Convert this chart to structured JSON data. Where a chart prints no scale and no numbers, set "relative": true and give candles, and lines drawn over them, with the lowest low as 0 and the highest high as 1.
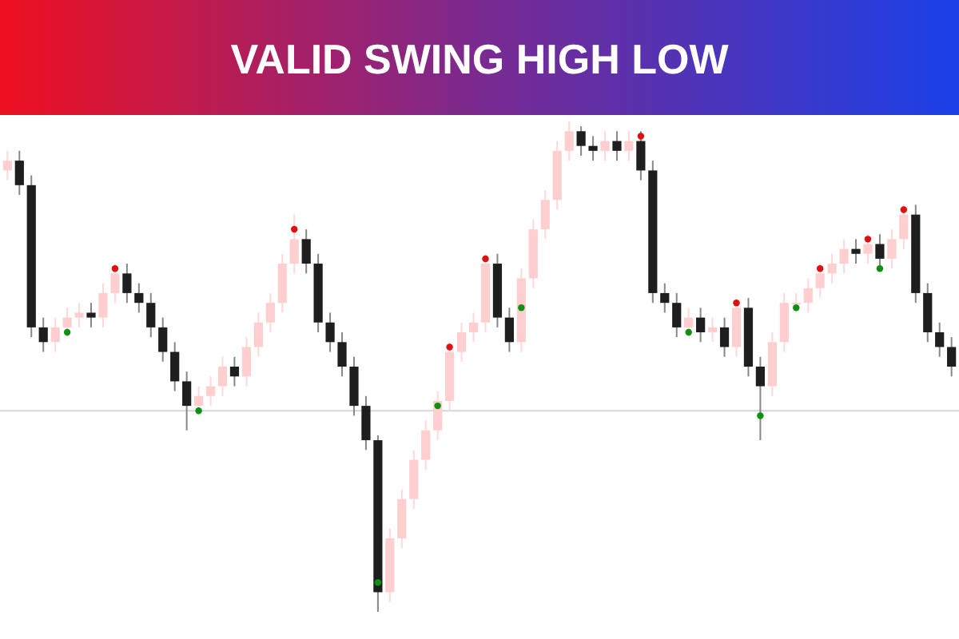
{
  "chart_data": {
    "type": "candlestick",
    "title": "VALID SWING HIGH LOW",
    "relative": true,
    "marker": "circle",
    "categories": [
      null,
      null,
      null,
      null,
      null,
      null,
      null,
      null,
      null,
      null,
      null,
      null,
      null,
      null,
      null,
      null,
      null,
      null,
      null,
      null,
      null,
      null,
      null,
      null,
      null,
      null,
      null,
      null,
      null,
      null,
      null,
      null,
      null,
      null,
      null,
      null,
      null,
      null,
      null,
      null,
      null,
      null,
      null,
      null,
      null,
      null,
      null,
      null,
      null,
      null,
      null,
      null,
      null,
      null,
      null,
      null,
      null,
      null,
      null,
      null,
      null,
      null,
      null,
      null,
      null,
      null,
      null,
      null,
      null,
      null,
      null,
      null,
      null,
      null,
      null,
      null,
      null,
      null,
      null,
      null
    ],
    "ohlc": [
      [
        0.9,
        0.94,
        0.88,
        0.92
      ],
      [
        0.92,
        0.94,
        0.85,
        0.87
      ],
      [
        0.87,
        0.89,
        0.56,
        0.58
      ],
      [
        0.58,
        0.6,
        0.53,
        0.55
      ],
      [
        0.55,
        0.6,
        0.53,
        0.58
      ],
      [
        0.58,
        0.62,
        0.56,
        0.6
      ],
      [
        0.6,
        0.63,
        0.58,
        0.61
      ],
      [
        0.61,
        0.63,
        0.58,
        0.6
      ],
      [
        0.6,
        0.67,
        0.58,
        0.65
      ],
      [
        0.65,
        0.71,
        0.63,
        0.69
      ],
      [
        0.69,
        0.71,
        0.63,
        0.65
      ],
      [
        0.65,
        0.67,
        0.61,
        0.63
      ],
      [
        0.63,
        0.65,
        0.56,
        0.58
      ],
      [
        0.58,
        0.6,
        0.51,
        0.53
      ],
      [
        0.53,
        0.55,
        0.45,
        0.47
      ],
      [
        0.47,
        0.49,
        0.37,
        0.42
      ],
      [
        0.42,
        0.46,
        0.4,
        0.44
      ],
      [
        0.44,
        0.48,
        0.42,
        0.46
      ],
      [
        0.46,
        0.52,
        0.44,
        0.5
      ],
      [
        0.5,
        0.52,
        0.46,
        0.48
      ],
      [
        0.48,
        0.56,
        0.46,
        0.54
      ],
      [
        0.54,
        0.61,
        0.52,
        0.59
      ],
      [
        0.59,
        0.65,
        0.57,
        0.63
      ],
      [
        0.63,
        0.73,
        0.61,
        0.71
      ],
      [
        0.71,
        0.81,
        0.69,
        0.76
      ],
      [
        0.76,
        0.78,
        0.69,
        0.71
      ],
      [
        0.71,
        0.73,
        0.57,
        0.59
      ],
      [
        0.59,
        0.61,
        0.53,
        0.55
      ],
      [
        0.55,
        0.57,
        0.48,
        0.5
      ],
      [
        0.5,
        0.52,
        0.4,
        0.42
      ],
      [
        0.42,
        0.44,
        0.33,
        0.35
      ],
      [
        0.35,
        0.36,
        0,
        0.04
      ],
      [
        0.04,
        0.17,
        0.02,
        0.15
      ],
      [
        0.15,
        0.25,
        0.13,
        0.23
      ],
      [
        0.23,
        0.33,
        0.21,
        0.31
      ],
      [
        0.31,
        0.39,
        0.29,
        0.37
      ],
      [
        0.37,
        0.45,
        0.35,
        0.43
      ],
      [
        0.43,
        0.55,
        0.41,
        0.53
      ],
      [
        0.53,
        0.59,
        0.51,
        0.57
      ],
      [
        0.57,
        0.61,
        0.55,
        0.59
      ],
      [
        0.59,
        0.73,
        0.57,
        0.71
      ],
      [
        0.71,
        0.73,
        0.58,
        0.6
      ],
      [
        0.6,
        0.62,
        0.53,
        0.55
      ],
      [
        0.55,
        0.7,
        0.53,
        0.68
      ],
      [
        0.68,
        0.8,
        0.66,
        0.78
      ],
      [
        0.78,
        0.86,
        0.76,
        0.84
      ],
      [
        0.84,
        0.96,
        0.82,
        0.94
      ],
      [
        0.94,
        1,
        0.92,
        0.98
      ],
      [
        0.98,
        0.99,
        0.93,
        0.95
      ],
      [
        0.95,
        0.97,
        0.92,
        0.94
      ],
      [
        0.94,
        0.98,
        0.92,
        0.96
      ],
      [
        0.96,
        0.98,
        0.92,
        0.94
      ],
      [
        0.94,
        0.98,
        0.92,
        0.96
      ],
      [
        0.96,
        0.98,
        0.88,
        0.9
      ],
      [
        0.9,
        0.92,
        0.63,
        0.65
      ],
      [
        0.65,
        0.67,
        0.61,
        0.63
      ],
      [
        0.63,
        0.65,
        0.56,
        0.58
      ],
      [
        0.58,
        0.62,
        0.56,
        0.6
      ],
      [
        0.6,
        0.62,
        0.55,
        0.57
      ],
      [
        0.57,
        0.6,
        0.55,
        0.58
      ],
      [
        0.58,
        0.6,
        0.52,
        0.54
      ],
      [
        0.54,
        0.64,
        0.52,
        0.62
      ],
      [
        0.62,
        0.64,
        0.48,
        0.5
      ],
      [
        0.5,
        0.52,
        0.35,
        0.46
      ],
      [
        0.46,
        0.57,
        0.44,
        0.55
      ],
      [
        0.55,
        0.65,
        0.53,
        0.63
      ],
      [
        0.63,
        0.65,
        0.61,
        0.63
      ],
      [
        0.63,
        0.68,
        0.61,
        0.66
      ],
      [
        0.66,
        0.71,
        0.64,
        0.69
      ],
      [
        0.69,
        0.73,
        0.67,
        0.71
      ],
      [
        0.71,
        0.76,
        0.69,
        0.74
      ],
      [
        0.74,
        0.76,
        0.71,
        0.73
      ],
      [
        0.73,
        0.77,
        0.71,
        0.75
      ],
      [
        0.75,
        0.77,
        0.7,
        0.72
      ],
      [
        0.72,
        0.78,
        0.7,
        0.76
      ],
      [
        0.76,
        0.83,
        0.74,
        0.81
      ],
      [
        0.81,
        0.83,
        0.63,
        0.65
      ],
      [
        0.65,
        0.67,
        0.55,
        0.57
      ],
      [
        0.57,
        0.59,
        0.52,
        0.54
      ],
      [
        0.54,
        0.56,
        0.48,
        0.5
      ]
    ],
    "ref_lines": [
      {
        "axis": "y",
        "value": 0.41,
        "color": "#d4d4dc"
      }
    ],
    "series": [
      {
        "type": "scatter",
        "color": "#e01010",
        "values": [
          null,
          null,
          null,
          null,
          null,
          null,
          null,
          null,
          null,
          0.7,
          null,
          null,
          null,
          null,
          null,
          null,
          null,
          null,
          null,
          null,
          null,
          null,
          null,
          null,
          0.78,
          null,
          null,
          null,
          null,
          null,
          null,
          null,
          null,
          null,
          null,
          null,
          null,
          0.54,
          null,
          null,
          0.72,
          null,
          null,
          null,
          null,
          null,
          null,
          null,
          null,
          null,
          null,
          null,
          null,
          0.97,
          null,
          null,
          null,
          null,
          null,
          null,
          null,
          0.63,
          null,
          null,
          null,
          null,
          null,
          null,
          0.7,
          null,
          null,
          null,
          0.76,
          null,
          null,
          0.82,
          null,
          null,
          null,
          null
        ]
      },
      {
        "type": "scatter",
        "color": "#109010",
        "values": [
          null,
          null,
          null,
          null,
          null,
          0.57,
          null,
          null,
          null,
          null,
          null,
          null,
          null,
          null,
          null,
          null,
          0.41,
          null,
          null,
          null,
          null,
          null,
          null,
          null,
          null,
          null,
          null,
          null,
          null,
          null,
          null,
          0.06,
          null,
          null,
          null,
          null,
          0.42,
          null,
          null,
          null,
          null,
          null,
          null,
          0.62,
          null,
          null,
          null,
          null,
          null,
          null,
          null,
          null,
          null,
          null,
          null,
          null,
          null,
          0.57,
          null,
          null,
          null,
          null,
          null,
          0.4,
          null,
          null,
          0.62,
          null,
          null,
          null,
          null,
          null,
          null,
          0.7,
          null,
          null,
          null,
          null,
          null,
          null
        ]
      }
    ]
  }
}
